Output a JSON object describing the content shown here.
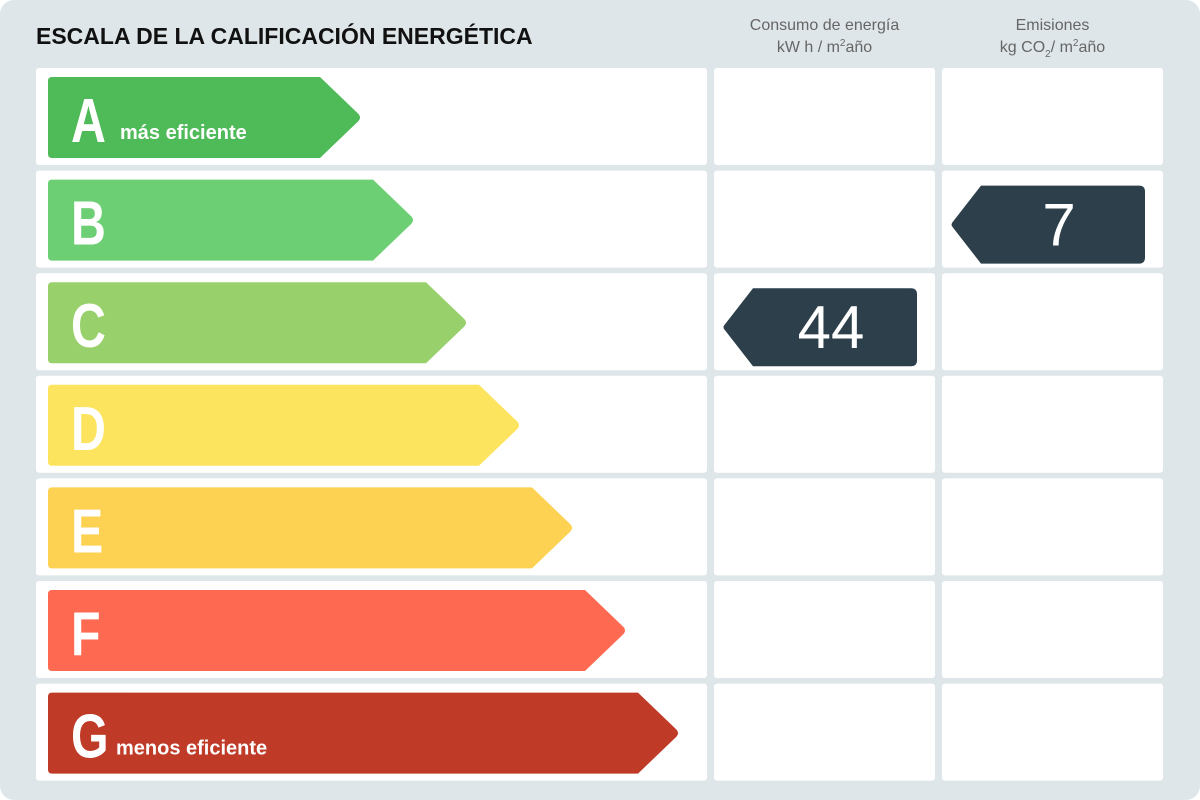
{
  "title": "ESCALA DE LA CALIFICACIÓN ENERGÉTICA",
  "columns": [
    {
      "label": "Consumo de energía",
      "unit": [
        "kW h / m",
        "2",
        "año"
      ],
      "unit_style": [
        "",
        "sup",
        ""
      ]
    },
    {
      "label": "Emisiones",
      "unit": [
        "kg CO",
        "2",
        "/ m",
        "2",
        "año"
      ],
      "unit_style": [
        "",
        "sub",
        "",
        "sup",
        ""
      ]
    }
  ],
  "ratings": [
    {
      "letter": "A",
      "note": "más eficiente",
      "color": "#4fba58"
    },
    {
      "letter": "B",
      "color": "#6ccf74"
    },
    {
      "letter": "C",
      "color": "#98d06b"
    },
    {
      "letter": "D",
      "color": "#fde45f"
    },
    {
      "letter": "E",
      "color": "#fdd151"
    },
    {
      "letter": "F",
      "color": "#fe6a51"
    },
    {
      "letter": "G",
      "note": "menos eficiente",
      "color": "#bf3b27"
    }
  ],
  "indicators": [
    {
      "value": 44,
      "rating": "C"
    },
    {
      "value": 7,
      "rating": "B"
    }
  ],
  "indicator_color": "#2c3f4a"
}
